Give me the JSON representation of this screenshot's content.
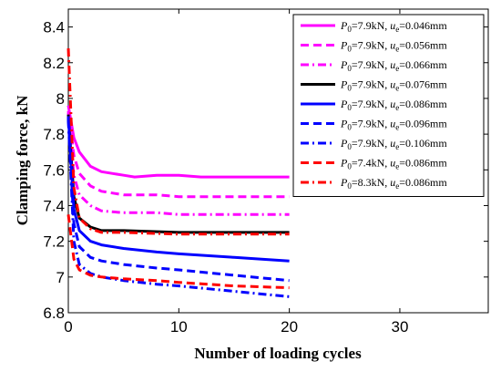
{
  "chart_data": {
    "type": "line",
    "title": "",
    "xlabel": "Number of loading cycles",
    "ylabel": "Clamping force, kN",
    "xlim": [
      0,
      38
    ],
    "ylim": [
      6.8,
      8.5
    ],
    "xticks": [
      0,
      10,
      20,
      30
    ],
    "xtick_labels": [
      "0",
      "10",
      "20",
      "30"
    ],
    "yticks": [
      6.8,
      7,
      7.2,
      7.4,
      7.6,
      7.8,
      8,
      8.2,
      8.4
    ],
    "ytick_labels": [
      "6.8",
      "7",
      "7.2",
      "7.4",
      "7.6",
      "7.8",
      "8",
      "8.2",
      "8.4"
    ],
    "grid": false,
    "legend_position": "top-right",
    "series": [
      {
        "name": "P0=7.9kN, ue=0.046mm",
        "legend": {
          "p_value": "=7.9kN, ",
          "u_value": "=0.046mm"
        },
        "color": "#ff00ff",
        "dash": "solid",
        "x": [
          0,
          0.5,
          1,
          2,
          3,
          5,
          6,
          8,
          10,
          12,
          15,
          18,
          20
        ],
        "y": [
          7.96,
          7.78,
          7.7,
          7.62,
          7.59,
          7.57,
          7.56,
          7.57,
          7.57,
          7.56,
          7.56,
          7.56,
          7.56
        ]
      },
      {
        "name": "P0=7.9kN, ue=0.056mm",
        "legend": {
          "p_value": "=7.9kN, ",
          "u_value": "=0.056mm"
        },
        "color": "#ff00ff",
        "dash": "dash",
        "x": [
          0,
          0.5,
          1,
          2,
          3,
          5,
          8,
          10,
          15,
          20
        ],
        "y": [
          7.93,
          7.68,
          7.58,
          7.51,
          7.48,
          7.46,
          7.46,
          7.45,
          7.45,
          7.45
        ]
      },
      {
        "name": "P0=7.9kN, ue=0.066mm",
        "legend": {
          "p_value": "=7.9kN, ",
          "u_value": "=0.066mm"
        },
        "color": "#ff00ff",
        "dash": "dashdot",
        "x": [
          0,
          0.5,
          1,
          2,
          3,
          5,
          8,
          10,
          15,
          20
        ],
        "y": [
          7.92,
          7.57,
          7.46,
          7.4,
          7.37,
          7.36,
          7.36,
          7.35,
          7.35,
          7.35
        ]
      },
      {
        "name": "P0=7.9kN, ue=0.076mm",
        "legend": {
          "p_value": "=7.9kN, ",
          "u_value": "=0.076mm"
        },
        "color": "#000000",
        "dash": "solid",
        "x": [
          0,
          0.5,
          1,
          2,
          3,
          5,
          10,
          15,
          20
        ],
        "y": [
          7.91,
          7.45,
          7.33,
          7.28,
          7.26,
          7.26,
          7.25,
          7.25,
          7.25
        ]
      },
      {
        "name": "P0=7.9kN, ue=0.086mm",
        "legend": {
          "p_value": "=7.9kN, ",
          "u_value": "=0.086mm"
        },
        "color": "#0000ff",
        "dash": "solid",
        "x": [
          0,
          0.5,
          1,
          2,
          3,
          5,
          8,
          10,
          15,
          20
        ],
        "y": [
          7.9,
          7.38,
          7.26,
          7.2,
          7.18,
          7.16,
          7.14,
          7.13,
          7.11,
          7.09
        ]
      },
      {
        "name": "P0=7.9kN, ue=0.096mm",
        "legend": {
          "p_value": "=7.9kN, ",
          "u_value": "=0.096mm"
        },
        "color": "#0000ff",
        "dash": "dash",
        "x": [
          0,
          0.5,
          1,
          2,
          3,
          5,
          8,
          10,
          15,
          20
        ],
        "y": [
          7.89,
          7.3,
          7.17,
          7.11,
          7.09,
          7.07,
          7.05,
          7.04,
          7.01,
          6.98
        ]
      },
      {
        "name": "P0=7.9kN, ue=0.106mm",
        "legend": {
          "p_value": "=7.9kN, ",
          "u_value": "=0.106mm"
        },
        "color": "#0000ff",
        "dash": "dashdot",
        "x": [
          0,
          0.5,
          1,
          2,
          3,
          5,
          8,
          10,
          15,
          20
        ],
        "y": [
          7.88,
          7.2,
          7.07,
          7.02,
          7.0,
          6.98,
          6.96,
          6.95,
          6.92,
          6.89
        ]
      },
      {
        "name": "P0=7.4kN, ue=0.086mm",
        "legend": {
          "p_value": "=7.4kN, ",
          "u_value": "=0.086mm"
        },
        "color": "#ff0000",
        "dash": "dash",
        "x": [
          0,
          0.5,
          1,
          2,
          3,
          5,
          8,
          10,
          15,
          20
        ],
        "y": [
          7.35,
          7.1,
          7.04,
          7.01,
          7.0,
          6.99,
          6.98,
          6.97,
          6.95,
          6.94
        ]
      },
      {
        "name": "P0=8.3kN, ue=0.086mm",
        "legend": {
          "p_value": "=8.3kN, ",
          "u_value": "=0.086mm"
        },
        "color": "#ff0000",
        "dash": "dashdot",
        "x": [
          0,
          0.5,
          1,
          2,
          3,
          5,
          10,
          15,
          20
        ],
        "y": [
          8.28,
          7.5,
          7.33,
          7.27,
          7.25,
          7.25,
          7.24,
          7.24,
          7.24
        ]
      }
    ]
  }
}
